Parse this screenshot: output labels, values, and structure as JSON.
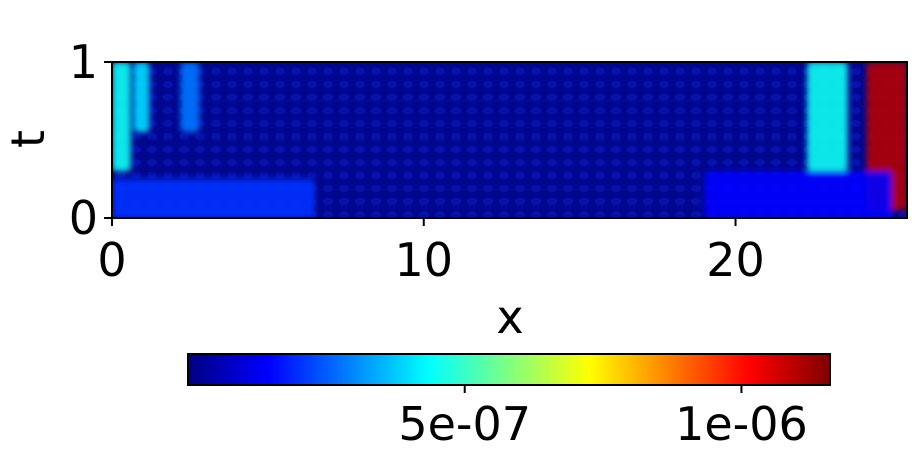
{
  "chart_data": {
    "type": "heatmap",
    "title": "",
    "xlabel": "x",
    "ylabel": "t",
    "xlim": [
      0,
      25.5
    ],
    "ylim": [
      0,
      1
    ],
    "x_ticks": [
      {
        "value": 0,
        "label": "0"
      },
      {
        "value": 10,
        "label": "10"
      },
      {
        "value": 20,
        "label": "20"
      }
    ],
    "y_ticks": [
      {
        "value": 0,
        "label": "0"
      },
      {
        "value": 1,
        "label": "1"
      }
    ],
    "colormap": "jet",
    "colorbar": {
      "orientation": "horizontal",
      "placement": "bottom",
      "range": [
        0,
        1.16e-06
      ],
      "ticks": [
        {
          "value": 5e-07,
          "label": "5e-07"
        },
        {
          "value": 1e-06,
          "label": "1e-06"
        }
      ]
    },
    "features": [
      {
        "x_range": [
          0.0,
          0.6
        ],
        "t_range": [
          0.3,
          1.0
        ],
        "approx_value": 4.5e-07
      },
      {
        "x_range": [
          0.7,
          1.2
        ],
        "t_range": [
          0.55,
          1.0
        ],
        "approx_value": 4e-07
      },
      {
        "x_range": [
          2.2,
          2.8
        ],
        "t_range": [
          0.55,
          1.0
        ],
        "approx_value": 2.8e-07
      },
      {
        "x_range": [
          22.3,
          23.6
        ],
        "t_range": [
          0.3,
          1.0
        ],
        "approx_value": 4.5e-07
      },
      {
        "x_range": [
          24.2,
          25.5
        ],
        "t_range": [
          0.05,
          1.0
        ],
        "approx_value": 1.1e-06
      },
      {
        "x_range": [
          0.0,
          6.5
        ],
        "t_range": [
          0.0,
          0.25
        ],
        "approx_value": 2e-07
      },
      {
        "x_range": [
          19.0,
          25.0
        ],
        "t_range": [
          0.0,
          0.3
        ],
        "approx_value": 1.5e-07
      }
    ]
  }
}
